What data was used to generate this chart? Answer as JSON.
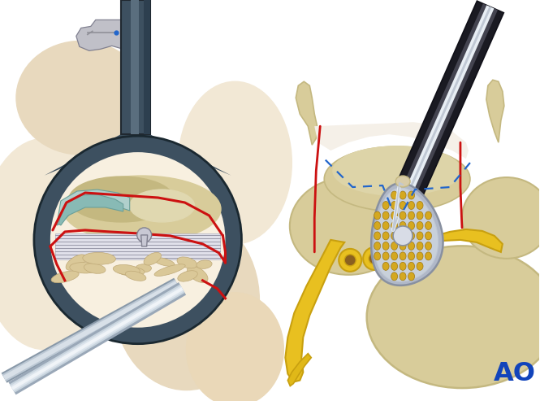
{
  "bg": "#ffffff",
  "tube_dark": "#3d5060",
  "tube_mid": "#5a6e7e",
  "tube_light": "#7a8e9e",
  "inner_bg": "#f8f0e0",
  "flesh1": "#f2e8d5",
  "flesh2": "#e8d9be",
  "flesh3": "#ead8b8",
  "bone_tan": "#d8cc9a",
  "bone_dark": "#c4b880",
  "bone_light": "#e0d8b0",
  "disc_bg": "#dcdce8",
  "disc_stripe": "#aaaabc",
  "teal1": "#88bab5",
  "teal2": "#6aa09a",
  "teal3": "#b0d0cc",
  "red": "#cc1111",
  "yellow1": "#e8c020",
  "yellow2": "#c8a010",
  "yellow3": "#e0b818",
  "nerve_brown": "#8a6020",
  "inst_black": "#1a1a22",
  "inst_white": "#e8eef4",
  "inst_grey": "#c0c8d4",
  "implant_grey": "#b0b8c8",
  "implant_outline": "#8890a0",
  "implant_dot": "#d4a820",
  "implant_dot_dark": "#a07810",
  "blue_dash": "#2266cc",
  "ao_blue": "#1144bb",
  "fig_grey": "#c0c0c8",
  "fig_outline": "#808090"
}
